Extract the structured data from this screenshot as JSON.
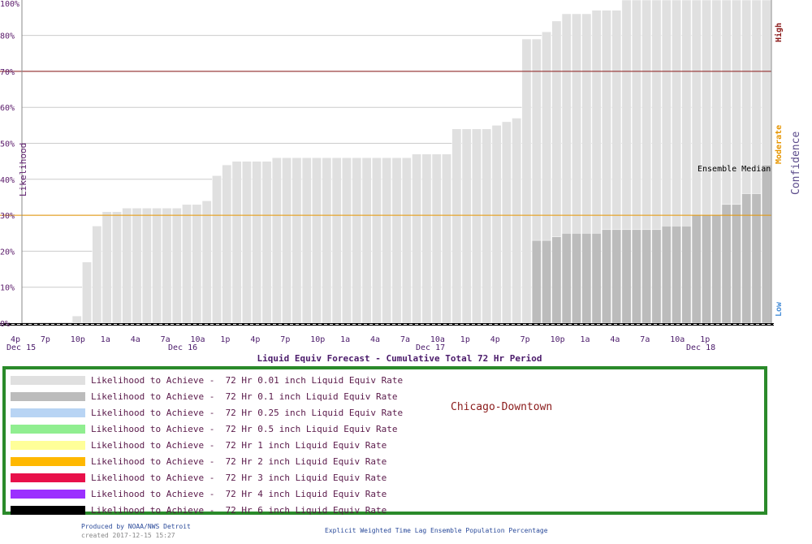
{
  "chart_data": {
    "type": "bar",
    "title": "Liquid Equiv Forecast - Cumulative Total 72 Hr Period",
    "ylabel": "Likelihood",
    "right_label": "Confidence",
    "ylim": [
      0,
      100
    ],
    "ytick_labels": [
      "0%",
      "10%",
      "20%",
      "30%",
      "40%",
      "50%",
      "60%",
      "70%",
      "80%",
      "100%"
    ],
    "ytick_values": [
      0,
      10,
      20,
      30,
      40,
      50,
      60,
      70,
      80,
      100
    ],
    "x_hour_labels": [
      "4p",
      "7p",
      "10p",
      "1a",
      "4a",
      "7a",
      "10a",
      "1p",
      "4p",
      "7p",
      "10p",
      "1a",
      "4a",
      "7a",
      "10a",
      "1p",
      "4p",
      "7p",
      "10p",
      "1a",
      "4a",
      "7a",
      "10a",
      "1p"
    ],
    "x_day_labels": [
      "Dec 15",
      "Dec 16",
      "Dec 17",
      "Dec 18"
    ],
    "thresholds": [
      {
        "label": "High",
        "value": 70,
        "color": "#8b1a1a"
      },
      {
        "label": "Moderate",
        "value": 30,
        "color": "#e69500"
      },
      {
        "label": "Low",
        "value": 0,
        "color": "#4a90d9"
      }
    ],
    "annotation": "Ensemble Median",
    "series": [
      {
        "name": "72 Hr 0.01 inch Liquid Equiv Rate",
        "color": "#e0e0e0",
        "values": [
          0,
          0,
          0,
          0,
          0,
          2,
          17,
          27,
          31,
          31,
          32,
          32,
          32,
          32,
          32,
          32,
          33,
          33,
          34,
          41,
          44,
          45,
          45,
          45,
          45,
          46,
          46,
          46,
          46,
          46,
          46,
          46,
          46,
          46,
          46,
          46,
          46,
          46,
          46,
          47,
          47,
          47,
          47,
          54,
          54,
          54,
          54,
          55,
          56,
          57,
          79,
          79,
          81,
          84,
          86,
          86,
          86,
          87,
          87,
          87,
          100,
          100,
          100,
          100,
          100,
          100,
          100,
          100,
          100,
          100,
          100,
          100,
          100,
          100,
          100
        ]
      },
      {
        "name": "72 Hr 0.1 inch Liquid Equiv Rate",
        "color": "#bcbcbc",
        "values": [
          0,
          0,
          0,
          0,
          0,
          0,
          0,
          0,
          0,
          0,
          0,
          0,
          0,
          0,
          0,
          0,
          0,
          0,
          0,
          0,
          0,
          0,
          0,
          0,
          0,
          0,
          0,
          0,
          0,
          0,
          0,
          0,
          0,
          0,
          0,
          0,
          0,
          0,
          0,
          0,
          0,
          0,
          0,
          0,
          0,
          0,
          0,
          0,
          0,
          0,
          0,
          23,
          23,
          24,
          25,
          25,
          25,
          25,
          26,
          26,
          26,
          26,
          26,
          26,
          27,
          27,
          27,
          30,
          30,
          30,
          33,
          33,
          36,
          36,
          44
        ]
      },
      {
        "name": "72 Hr 0.25 inch Liquid Equiv Rate",
        "color": "#b8d4f4",
        "values": []
      },
      {
        "name": "72 Hr 0.5 inch Liquid Equiv Rate",
        "color": "#90ee90",
        "values": []
      },
      {
        "name": "72 Hr 1 inch Liquid Equiv Rate",
        "color": "#ffff99",
        "values": []
      },
      {
        "name": "72 Hr 2 inch Liquid Equiv Rate",
        "color": "#ffb800",
        "values": []
      },
      {
        "name": "72 Hr 3 inch Liquid Equiv Rate",
        "color": "#e8104a",
        "values": []
      },
      {
        "name": "72 Hr 4 inch Liquid Equiv Rate",
        "color": "#9b30ff",
        "values": []
      },
      {
        "name": "72 Hr 6 inch Liquid Equiv Rate",
        "color": "#000000",
        "values": []
      }
    ]
  },
  "legend": {
    "prefix": "Likelihood to Achieve -",
    "items": [
      {
        "label": "72 Hr 0.01 inch Liquid Equiv Rate",
        "color": "#e0e0e0"
      },
      {
        "label": "72 Hr 0.1 inch Liquid Equiv Rate",
        "color": "#bcbcbc"
      },
      {
        "label": "72 Hr 0.25 inch Liquid Equiv Rate",
        "color": "#b8d4f4"
      },
      {
        "label": "72 Hr 0.5 inch Liquid Equiv Rate",
        "color": "#90ee90"
      },
      {
        "label": "72 Hr 1 inch Liquid Equiv Rate",
        "color": "#ffff99"
      },
      {
        "label": "72 Hr 2 inch Liquid Equiv Rate",
        "color": "#ffb800"
      },
      {
        "label": "72 Hr 3 inch Liquid Equiv Rate",
        "color": "#e8104a"
      },
      {
        "label": "72 Hr 4 inch Liquid Equiv Rate",
        "color": "#9b30ff"
      },
      {
        "label": "72 Hr 6 inch Liquid Equiv Rate",
        "color": "#000000"
      }
    ]
  },
  "location": "Chicago-Downtown",
  "footer": {
    "produced_by": "Produced by NOAA/NWS Detroit",
    "created": "created 2017-12-15 15:27",
    "center": "Explicit Weighted Time Lag Ensemble Population Percentage"
  }
}
